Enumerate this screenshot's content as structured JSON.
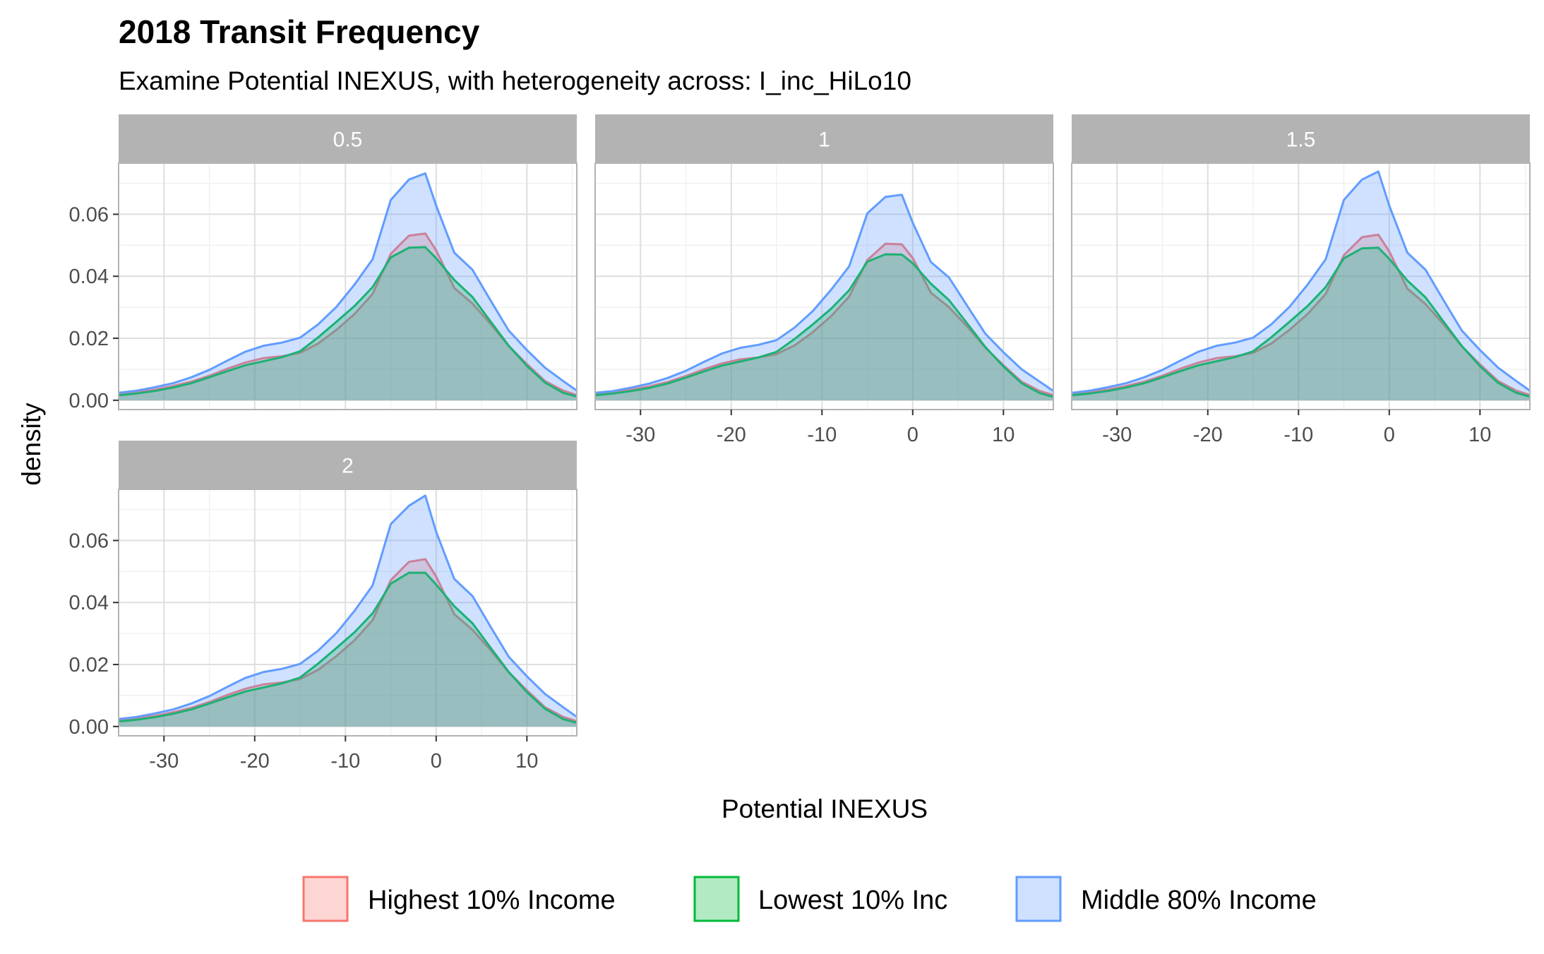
{
  "chart_data": {
    "type": "area",
    "title": "2018 Transit Frequency",
    "subtitle": "Examine Potential INEXUS, with heterogeneity across: I_inc_HiLo10",
    "xlabel": "Potential INEXUS",
    "ylabel": "density",
    "xlim": [
      -35,
      15.5
    ],
    "ylim": [
      -0.003,
      0.0765
    ],
    "x_ticks": [
      -30,
      -20,
      -10,
      0,
      10
    ],
    "y_ticks": [
      0.0,
      0.02,
      0.04,
      0.06
    ],
    "x_tick_labels": [
      "-30",
      "-20",
      "-10",
      "0",
      "10"
    ],
    "y_tick_labels": [
      "0.00",
      "0.02",
      "0.04",
      "0.06"
    ],
    "grid": true,
    "legend_position": "bottom",
    "colors": {
      "Highest 10% Income": "#F8766D",
      "Lowest 10% Inc": "#00BA38",
      "Middle 80% Income": "#619CFF",
      "strip_background": "#B3B3B3",
      "panel_border": "#B3B3B3",
      "grid_major": "#DEDEDE",
      "grid_minor": "#EFEFEF"
    },
    "legend": [
      "Highest 10% Income",
      "Lowest 10% Inc",
      "Middle 80% Income"
    ],
    "x": [
      -35,
      -33,
      -31,
      -29,
      -27,
      -25,
      -23,
      -21,
      -19,
      -17,
      -15,
      -13,
      -11,
      -9,
      -7,
      -5,
      -3,
      -1.2,
      0,
      2,
      4,
      6,
      8,
      10,
      12,
      14,
      15.5
    ],
    "panels": [
      {
        "label": "0.5",
        "series": [
          {
            "name": "Highest 10% Income",
            "values": [
              0.002,
              0.0026,
              0.0034,
              0.0046,
              0.006,
              0.0079,
              0.0102,
              0.0122,
              0.0136,
              0.0142,
              0.0153,
              0.0183,
              0.0227,
              0.0278,
              0.0343,
              0.0472,
              0.0531,
              0.0538,
              0.0484,
              0.0362,
              0.0312,
              0.0246,
              0.0175,
              0.0117,
              0.0062,
              0.0031,
              0.0017
            ]
          },
          {
            "name": "Lowest 10% Inc",
            "values": [
              0.0016,
              0.0022,
              0.003,
              0.0041,
              0.0055,
              0.0074,
              0.0094,
              0.0113,
              0.0126,
              0.0139,
              0.0158,
              0.0203,
              0.0253,
              0.0304,
              0.0365,
              0.0461,
              0.0492,
              0.0494,
              0.0458,
              0.0388,
              0.0333,
              0.0254,
              0.0176,
              0.0111,
              0.0057,
              0.0024,
              0.0012
            ]
          },
          {
            "name": "Middle 80% Income",
            "values": [
              0.0024,
              0.0031,
              0.0042,
              0.0055,
              0.0074,
              0.0098,
              0.0128,
              0.0157,
              0.0176,
              0.0186,
              0.0202,
              0.0245,
              0.0301,
              0.0373,
              0.0455,
              0.0646,
              0.0712,
              0.0732,
              0.0628,
              0.0476,
              0.0421,
              0.0322,
              0.0225,
              0.0162,
              0.0105,
              0.0062,
              0.0031
            ]
          }
        ]
      },
      {
        "label": "1",
        "series": [
          {
            "name": "Highest 10% Income",
            "values": [
              0.002,
              0.0026,
              0.0034,
              0.0045,
              0.0059,
              0.0078,
              0.01,
              0.0119,
              0.0132,
              0.0138,
              0.0149,
              0.0177,
              0.022,
              0.0271,
              0.0334,
              0.0452,
              0.0505,
              0.0503,
              0.0459,
              0.0347,
              0.03,
              0.0238,
              0.017,
              0.0113,
              0.006,
              0.003,
              0.0017
            ]
          },
          {
            "name": "Lowest 10% Inc",
            "values": [
              0.0016,
              0.0022,
              0.003,
              0.004,
              0.0054,
              0.0073,
              0.0093,
              0.0112,
              0.0125,
              0.0138,
              0.0156,
              0.0198,
              0.0245,
              0.0295,
              0.0355,
              0.0447,
              0.0471,
              0.047,
              0.0442,
              0.0376,
              0.0323,
              0.0248,
              0.0172,
              0.0109,
              0.0055,
              0.0023,
              0.0011
            ]
          },
          {
            "name": "Middle 80% Income",
            "values": [
              0.0024,
              0.003,
              0.0041,
              0.0054,
              0.0072,
              0.0095,
              0.0124,
              0.0151,
              0.0169,
              0.0179,
              0.0194,
              0.0235,
              0.0288,
              0.0356,
              0.0432,
              0.0603,
              0.0656,
              0.0663,
              0.0573,
              0.0446,
              0.0396,
              0.0305,
              0.0215,
              0.0155,
              0.01,
              0.006,
              0.003
            ]
          }
        ]
      },
      {
        "label": "1.5",
        "series": [
          {
            "name": "Highest 10% Income",
            "values": [
              0.002,
              0.0026,
              0.0034,
              0.0046,
              0.006,
              0.0079,
              0.0102,
              0.0122,
              0.0136,
              0.0142,
              0.0153,
              0.0183,
              0.0227,
              0.0278,
              0.0343,
              0.0468,
              0.0526,
              0.0534,
              0.048,
              0.036,
              0.031,
              0.0245,
              0.0174,
              0.0116,
              0.0062,
              0.0031,
              0.0017
            ]
          },
          {
            "name": "Lowest 10% Inc",
            "values": [
              0.0016,
              0.0022,
              0.003,
              0.0041,
              0.0055,
              0.0074,
              0.0094,
              0.0113,
              0.0126,
              0.0139,
              0.0158,
              0.0203,
              0.0253,
              0.0304,
              0.0365,
              0.0458,
              0.049,
              0.0492,
              0.0456,
              0.0386,
              0.0332,
              0.0253,
              0.0175,
              0.011,
              0.0056,
              0.0024,
              0.0012
            ]
          },
          {
            "name": "Middle 80% Income",
            "values": [
              0.0024,
              0.0031,
              0.0042,
              0.0055,
              0.0074,
              0.0098,
              0.0128,
              0.0157,
              0.0176,
              0.0186,
              0.0202,
              0.0245,
              0.0301,
              0.0373,
              0.0455,
              0.0646,
              0.0712,
              0.0738,
              0.0628,
              0.0476,
              0.0421,
              0.0322,
              0.0225,
              0.0162,
              0.0105,
              0.0062,
              0.0031
            ]
          }
        ]
      },
      {
        "label": "2",
        "series": [
          {
            "name": "Highest 10% Income",
            "values": [
              0.002,
              0.0026,
              0.0034,
              0.0046,
              0.006,
              0.0079,
              0.0102,
              0.0122,
              0.0136,
              0.0142,
              0.0153,
              0.0183,
              0.0227,
              0.0278,
              0.0343,
              0.0472,
              0.0531,
              0.054,
              0.0484,
              0.0362,
              0.0312,
              0.0246,
              0.0175,
              0.0117,
              0.0062,
              0.0031,
              0.0017
            ]
          },
          {
            "name": "Lowest 10% Inc",
            "values": [
              0.0016,
              0.0022,
              0.003,
              0.0041,
              0.0055,
              0.0074,
              0.0094,
              0.0113,
              0.0126,
              0.0139,
              0.0158,
              0.0203,
              0.0253,
              0.0304,
              0.0365,
              0.0461,
              0.0496,
              0.0496,
              0.0458,
              0.0388,
              0.0333,
              0.0254,
              0.0176,
              0.0111,
              0.0057,
              0.0024,
              0.0012
            ]
          },
          {
            "name": "Middle 80% Income",
            "values": [
              0.0024,
              0.0031,
              0.0042,
              0.0055,
              0.0074,
              0.0098,
              0.0128,
              0.0157,
              0.0176,
              0.0186,
              0.0202,
              0.0245,
              0.0301,
              0.0373,
              0.0455,
              0.0653,
              0.0712,
              0.0745,
              0.0628,
              0.0476,
              0.0421,
              0.0322,
              0.0225,
              0.0162,
              0.0105,
              0.0062,
              0.0031
            ]
          }
        ]
      }
    ]
  }
}
